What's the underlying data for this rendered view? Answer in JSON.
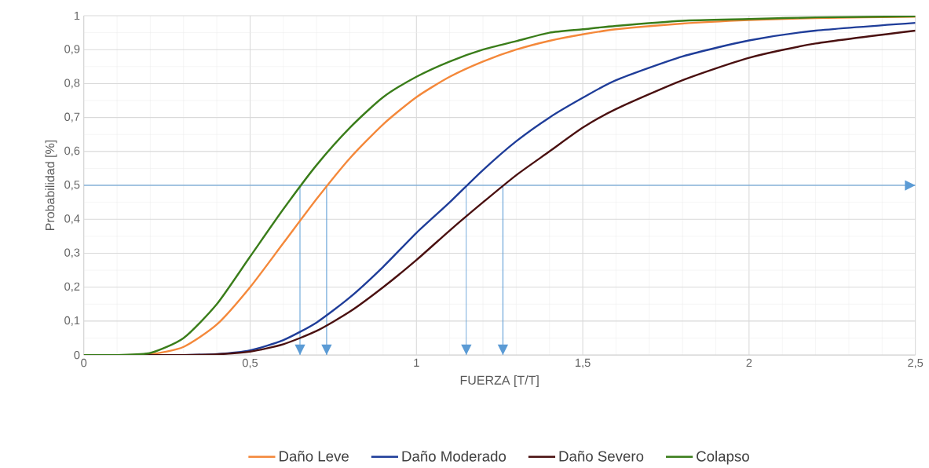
{
  "chart_data": {
    "type": "line",
    "xlabel": "FUERZA [T/T]",
    "ylabel": "Probabilidad [%]",
    "x": [
      0,
      0.1,
      0.2,
      0.3,
      0.4,
      0.5,
      0.6,
      0.7,
      0.8,
      0.9,
      1.0,
      1.1,
      1.2,
      1.3,
      1.4,
      1.5,
      1.6,
      1.8,
      2.0,
      2.2,
      2.5
    ],
    "series": [
      {
        "name": "Daño Leve",
        "color": "#f4883a",
        "values": [
          0,
          0,
          0.002,
          0.024,
          0.09,
          0.2,
          0.33,
          0.46,
          0.58,
          0.68,
          0.76,
          0.82,
          0.865,
          0.9,
          0.926,
          0.945,
          0.96,
          0.977,
          0.987,
          0.993,
          0.997
        ]
      },
      {
        "name": "Daño Moderado",
        "color": "#1f3d99",
        "values": [
          null,
          null,
          null,
          0,
          0.003,
          0.014,
          0.044,
          0.096,
          0.17,
          0.26,
          0.36,
          0.45,
          0.545,
          0.63,
          0.7,
          0.758,
          0.81,
          0.88,
          0.927,
          0.956,
          0.979
        ]
      },
      {
        "name": "Daño Severo",
        "color": "#4a1010",
        "values": [
          0,
          0,
          0,
          0,
          0.002,
          0.01,
          0.032,
          0.071,
          0.128,
          0.2,
          0.28,
          0.367,
          0.45,
          0.53,
          0.6,
          0.67,
          0.725,
          0.81,
          0.876,
          0.918,
          0.956
        ]
      },
      {
        "name": "Colapso",
        "color": "#3a7d1a",
        "values": [
          0,
          0,
          0.006,
          0.05,
          0.15,
          0.29,
          0.43,
          0.56,
          0.67,
          0.76,
          0.82,
          0.865,
          0.9,
          0.925,
          0.95,
          0.96,
          0.97,
          0.985,
          0.99,
          0.995,
          0.998
        ]
      }
    ],
    "xlim": [
      0,
      2.5
    ],
    "ylim": [
      0,
      1
    ],
    "xticks": [
      0,
      {
        "value": 0.5,
        "label": "0,5"
      },
      1,
      {
        "value": 1.5,
        "label": "1,5"
      },
      2,
      {
        "value": 2.5,
        "label": "2,5"
      }
    ],
    "yticks": [
      0,
      {
        "value": 0.1,
        "label": "0,1"
      },
      {
        "value": 0.2,
        "label": "0,2"
      },
      {
        "value": 0.3,
        "label": "0,3"
      },
      {
        "value": 0.4,
        "label": "0,4"
      },
      {
        "value": 0.5,
        "label": "0,5"
      },
      {
        "value": 0.6,
        "label": "0,6"
      },
      {
        "value": 0.7,
        "label": "0,7"
      },
      {
        "value": 0.8,
        "label": "0,8"
      },
      {
        "value": 0.9,
        "label": "0,9"
      },
      1
    ],
    "ref_lines": [
      {
        "axis": "y",
        "value": 0.5,
        "color": "#5b9bd5"
      },
      {
        "axis": "x",
        "value": 0.65,
        "color": "#5b9bd5"
      },
      {
        "axis": "x",
        "value": 0.73,
        "color": "#5b9bd5"
      },
      {
        "axis": "x",
        "value": 1.15,
        "color": "#5b9bd5"
      },
      {
        "axis": "x",
        "value": 1.26,
        "color": "#5b9bd5"
      }
    ],
    "grid": true,
    "legend": "bottom",
    "marker": "none",
    "line_style": "solid"
  }
}
